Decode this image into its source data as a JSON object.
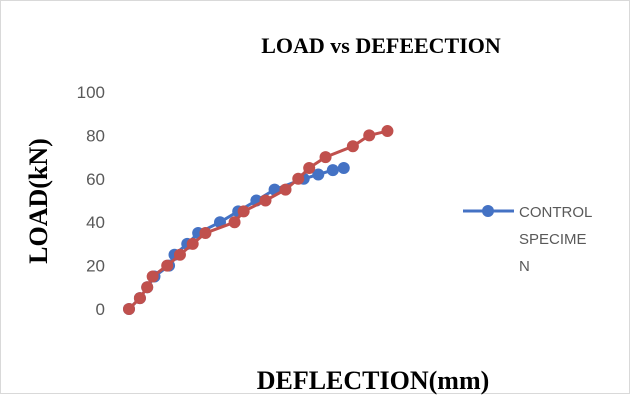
{
  "chart_data": {
    "type": "line",
    "title": "LOAD vs DEFEECTION",
    "xlabel": "DEFLECTION(mm)",
    "ylabel": "LOAD(kN)",
    "ylim": [
      0,
      100
    ],
    "y_ticks": [
      "0",
      "20",
      "40",
      "60",
      "80",
      "100"
    ],
    "grid": false,
    "legend_position": "right",
    "legend": {
      "lines": [
        "CONTROL",
        "SPECIME",
        "N"
      ]
    },
    "series": [
      {
        "name": "CONTROL SPECIMEN",
        "color": "#4472C4",
        "x": [
          0,
          0.6,
          1.0,
          1.4,
          2.2,
          2.5,
          3.2,
          3.8,
          5.0,
          6.0,
          7.0,
          8.0,
          9.6,
          10.4,
          11.2,
          11.8
        ],
        "values": [
          0,
          5,
          10,
          15,
          20,
          25,
          30,
          35,
          40,
          45,
          50,
          55,
          60,
          62,
          64,
          65
        ]
      },
      {
        "name": "",
        "color": "#C0504D",
        "x": [
          0,
          0.6,
          1.0,
          1.3,
          2.1,
          2.8,
          3.5,
          4.2,
          5.8,
          6.3,
          7.5,
          8.6,
          9.3,
          9.9,
          10.8,
          12.3,
          13.2,
          14.2
        ],
        "values": [
          0,
          5,
          10,
          15,
          20,
          25,
          30,
          35,
          40,
          45,
          50,
          55,
          60,
          65,
          70,
          75,
          80,
          82
        ]
      }
    ]
  }
}
